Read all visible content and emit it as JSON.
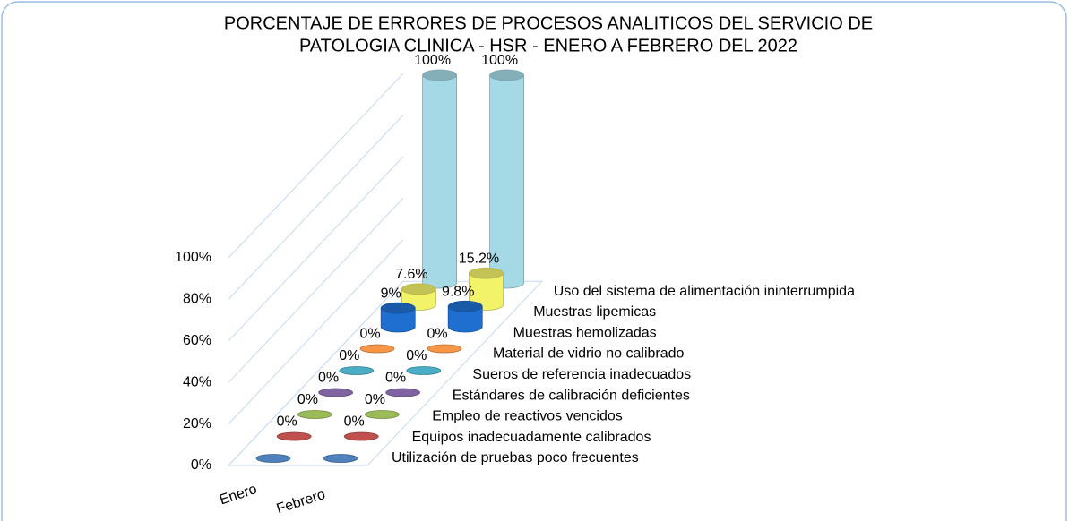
{
  "chart_data": {
    "type": "cylinder3d",
    "title": [
      "PORCENTAJE DE ERRORES DE PROCESOS ANALITICOS DEL SERVICIO DE",
      "PATOLOGIA CLINICA - HSR - ENERO A FEBRERO DEL 2022"
    ],
    "categories": [
      "Enero",
      "Febrero"
    ],
    "ylim": [
      0,
      100
    ],
    "yticks": [
      {
        "value": 0,
        "label": "0%"
      },
      {
        "value": 20,
        "label": "20%"
      },
      {
        "value": 40,
        "label": "40%"
      },
      {
        "value": 60,
        "label": "60%"
      },
      {
        "value": 80,
        "label": "80%"
      },
      {
        "value": 100,
        "label": "100%"
      }
    ],
    "grid": true,
    "series": [
      {
        "name": "Utilización de pruebas poco frecuentes",
        "color": "#4f81bd",
        "values": [
          0,
          0
        ],
        "value_labels": [
          null,
          null
        ]
      },
      {
        "name": "Equipos inadecuadamente calibrados",
        "color": "#c0504d",
        "values": [
          0,
          0
        ],
        "value_labels": [
          "0%",
          "0%"
        ]
      },
      {
        "name": "Empleo de reactivos vencidos",
        "color": "#9bbb59",
        "values": [
          0,
          0
        ],
        "value_labels": [
          "0%",
          "0%"
        ]
      },
      {
        "name": "Estándares de calibración deficientes",
        "color": "#8064a2",
        "values": [
          0,
          0
        ],
        "value_labels": [
          "0%",
          "0%"
        ]
      },
      {
        "name": "Sueros de referencia inadecuados",
        "color": "#4bacc6",
        "values": [
          0,
          0
        ],
        "value_labels": [
          "0%",
          "0%"
        ]
      },
      {
        "name": "Material de vidrio no calibrado",
        "color": "#f79646",
        "values": [
          0,
          0
        ],
        "value_labels": [
          "0%",
          "0%"
        ]
      },
      {
        "name": "Muestras hemolizadas",
        "color": "#1f6fd1",
        "values": [
          9,
          9.8
        ],
        "value_labels": [
          "9%",
          "9.8%"
        ]
      },
      {
        "name": "Muestras lipemicas",
        "color": "#f3f36a",
        "values": [
          7.6,
          15.2
        ],
        "value_labels": [
          "7.6%",
          "15.2%"
        ]
      },
      {
        "name": "Uso del sistema de alimentación ininterrumpida",
        "color": "#a5d9e6",
        "values": [
          100,
          100
        ],
        "value_labels": [
          "100%",
          "100%"
        ]
      }
    ]
  }
}
